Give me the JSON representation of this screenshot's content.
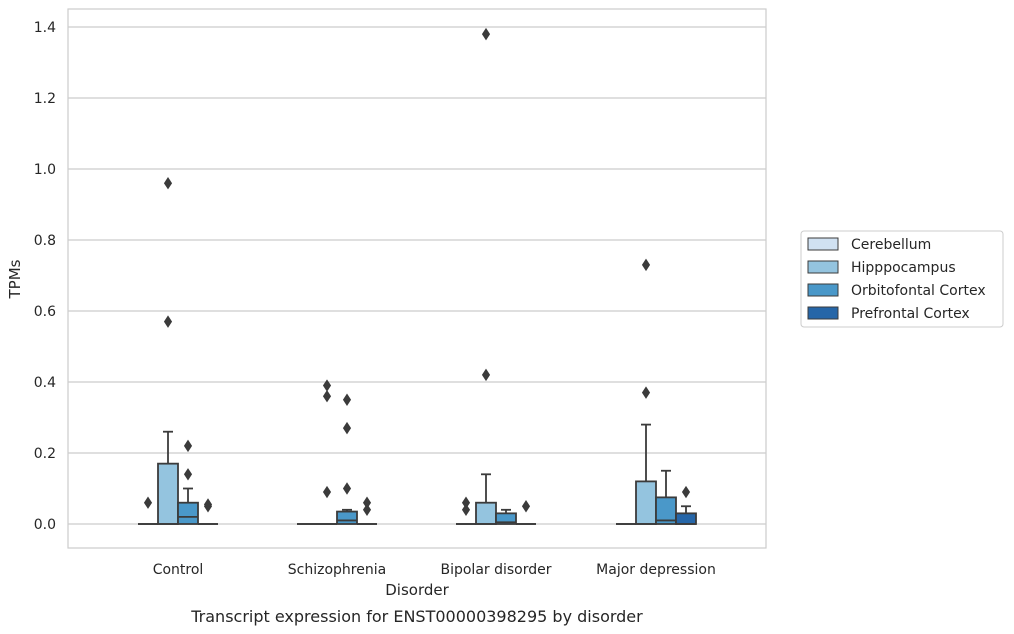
{
  "chart_data": {
    "type": "box",
    "title": "Transcript expression for ENST00000398295 by disorder",
    "xlabel": "Disorder",
    "ylabel": "TPMs",
    "categories": [
      "Control",
      "Schizophrenia",
      "Bipolar disorder",
      "Major depression"
    ],
    "ylim": [
      -0.07,
      1.45
    ],
    "yticks": [
      0.0,
      0.2,
      0.4,
      0.6,
      0.8,
      1.0,
      1.2,
      1.4
    ],
    "ytick_labels": [
      "0.0",
      "0.2",
      "0.4",
      "0.6",
      "0.8",
      "1.0",
      "1.2",
      "1.4"
    ],
    "grid": "horizontal",
    "legend_position": "right",
    "series": [
      {
        "name": "Cerebellum",
        "color": "#d0e1f2",
        "boxes": [
          {
            "q1": 0,
            "median": 0,
            "q3": 0,
            "whislo": 0,
            "whishi": 0,
            "fliers": [
              0.06
            ]
          },
          {
            "q1": 0,
            "median": 0,
            "q3": 0,
            "whislo": 0,
            "whishi": 0,
            "fliers": []
          },
          {
            "q1": 0,
            "median": 0,
            "q3": 0,
            "whislo": 0,
            "whishi": 0,
            "fliers": [
              0.04,
              0.06
            ]
          },
          {
            "q1": 0,
            "median": 0,
            "q3": 0,
            "whislo": 0,
            "whishi": 0,
            "fliers": []
          }
        ]
      },
      {
        "name": "Hipppocampus",
        "color": "#94c4df",
        "boxes": [
          {
            "q1": 0,
            "median": 0,
            "q3": 0.17,
            "whislo": 0,
            "whishi": 0.26,
            "fliers": [
              0.57,
              0.96
            ]
          },
          {
            "q1": 0,
            "median": 0,
            "q3": 0,
            "whislo": 0,
            "whishi": 0,
            "fliers": [
              0.09,
              0.36,
              0.39
            ]
          },
          {
            "q1": 0,
            "median": 0,
            "q3": 0.06,
            "whislo": 0,
            "whishi": 0.14,
            "fliers": [
              0.42,
              1.38
            ]
          },
          {
            "q1": 0,
            "median": 0,
            "q3": 0.12,
            "whislo": 0,
            "whishi": 0.28,
            "fliers": [
              0.37,
              0.73
            ]
          }
        ]
      },
      {
        "name": "Orbitofontal Cortex",
        "color": "#4a98c9",
        "boxes": [
          {
            "q1": 0,
            "median": 0.02,
            "q3": 0.06,
            "whislo": 0,
            "whishi": 0.1,
            "fliers": [
              0.14,
              0.22
            ]
          },
          {
            "q1": 0,
            "median": 0.01,
            "q3": 0.035,
            "whislo": 0,
            "whishi": 0.04,
            "fliers": [
              0.1,
              0.27,
              0.35
            ]
          },
          {
            "q1": 0,
            "median": 0.005,
            "q3": 0.03,
            "whislo": 0,
            "whishi": 0.04,
            "fliers": []
          },
          {
            "q1": 0,
            "median": 0.01,
            "q3": 0.075,
            "whislo": 0,
            "whishi": 0.15,
            "fliers": []
          }
        ]
      },
      {
        "name": "Prefrontal Cortex",
        "color": "#2666a8",
        "boxes": [
          {
            "q1": 0,
            "median": 0,
            "q3": 0,
            "whislo": 0,
            "whishi": 0,
            "fliers": [
              0.05,
              0.055
            ]
          },
          {
            "q1": 0,
            "median": 0,
            "q3": 0,
            "whislo": 0,
            "whishi": 0,
            "fliers": [
              0.04,
              0.06
            ]
          },
          {
            "q1": 0,
            "median": 0,
            "q3": 0,
            "whislo": 0,
            "whishi": 0,
            "fliers": [
              0.05
            ]
          },
          {
            "q1": 0,
            "median": 0,
            "q3": 0.03,
            "whislo": 0,
            "whishi": 0.05,
            "fliers": [
              0.09
            ]
          }
        ]
      }
    ]
  }
}
